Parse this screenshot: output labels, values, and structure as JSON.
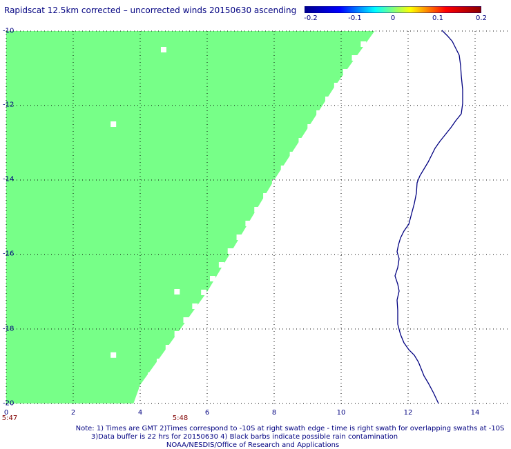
{
  "title": "Rapidscat 12.5km corrected – uncorrected winds 20150630 ascending",
  "colorbar": {
    "labels": [
      "-0.2",
      "-0.1",
      "0",
      "0.1",
      "0.2"
    ],
    "stops": [
      "#00008b",
      "#0000ff",
      "#00ffff",
      "#ffff00",
      "#ff0000",
      "#8b0000"
    ]
  },
  "colors": {
    "swath": "#77ff88",
    "coastline": "#000080",
    "grid": "#000000"
  },
  "chart_data": {
    "type": "heatmap",
    "x_ticks": [
      "0",
      "2",
      "4",
      "6",
      "8",
      "10",
      "12",
      "14"
    ],
    "y_ticks": [
      "-10",
      "-12",
      "-14",
      "-16",
      "-18",
      "-20"
    ],
    "xlim": [
      0,
      14.8
    ],
    "ylim": [
      -20,
      -10
    ],
    "swath_edge": [
      [
        11,
        -10
      ],
      [
        9.8,
        -11.5
      ],
      [
        8.0,
        -14.0
      ],
      [
        6.0,
        -17.0
      ],
      [
        4.0,
        -19.5
      ],
      [
        3.8,
        -20
      ]
    ],
    "swath_value": 0,
    "gap_points": [
      [
        4.7,
        -10.5
      ],
      [
        3.2,
        -12.5
      ],
      [
        5.1,
        -17.0
      ],
      [
        3.2,
        -18.7
      ]
    ]
  },
  "times": [
    {
      "label": "5:47",
      "x": 0
    },
    {
      "label": "5:48",
      "x": 5.2
    }
  ],
  "notes": [
    "Note: 1) Times are GMT 2)Times correspond to -10S at right swath edge - time is right swath for overlapping swaths at -10S",
    "3)Data buffer is 22 hrs for 20150630 4) Black barbs indicate possible rain contamination",
    "NOAA/NESDIS/Office of Research and Applications"
  ]
}
